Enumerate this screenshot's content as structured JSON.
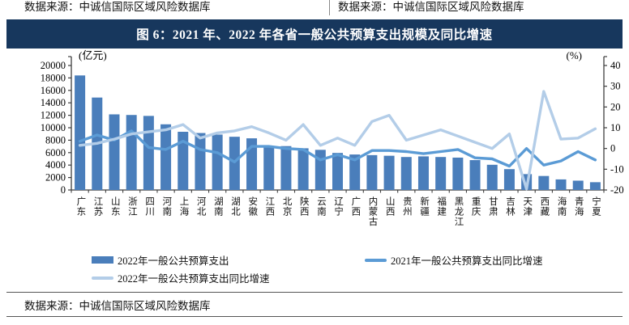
{
  "header": {
    "source_left": "数据来源：中诚信国际区域风险数据库",
    "source_right": "数据来源：中诚信国际区域风险数据库"
  },
  "banner": {
    "title": "图 6：2021 年、2022 年各省一般公共预算支出规模及同比增速",
    "bg_color": "#17375D"
  },
  "chart_data": {
    "type": "bar+line",
    "categories": [
      "广东",
      "江苏",
      "山东",
      "浙江",
      "四川",
      "河南",
      "上海",
      "河北",
      "湖南",
      "湖北",
      "安徽",
      "江西",
      "北京",
      "陕西",
      "云南",
      "辽宁",
      "广西",
      "内蒙古",
      "山西",
      "贵州",
      "新疆",
      "福建",
      "黑龙江",
      "重庆",
      "甘肃",
      "吉林",
      "天津",
      "西藏",
      "海南",
      "青海",
      "宁夏"
    ],
    "series": [
      {
        "name": "2022年一般公共预算支出",
        "type": "bar",
        "axis": "left",
        "color": "#4A7EBB",
        "values": [
          18400,
          14850,
          12150,
          12050,
          11900,
          10550,
          9350,
          9150,
          8900,
          8550,
          8300,
          7050,
          7050,
          6700,
          6450,
          5950,
          5700,
          5600,
          5500,
          5300,
          5400,
          5300,
          5200,
          4800,
          4050,
          3350,
          2550,
          2250,
          1700,
          1500,
          1250
        ]
      },
      {
        "name": "2021年一般公共预算支出同比增速",
        "type": "line",
        "axis": "right",
        "color": "#5B9BD5",
        "values": [
          3.5,
          6.5,
          4,
          8.5,
          0.5,
          -0.5,
          3.5,
          -0.5,
          -2,
          -6.5,
          1,
          1,
          0,
          -0.5,
          -5.5,
          -3,
          -5.5,
          -1,
          -1,
          -1.5,
          -2.5,
          -1.5,
          -0.5,
          -4.5,
          -5,
          -8.5,
          0,
          -8,
          -6,
          -1.5,
          -5.5
        ]
      },
      {
        "name": "2022年一般公共预算支出同比增速",
        "type": "line",
        "axis": "right",
        "color": "#B3CDE8",
        "values": [
          1.5,
          2.5,
          4.5,
          7,
          8,
          9,
          11.5,
          5,
          7.5,
          8.5,
          10.5,
          7.5,
          4,
          11.5,
          1.5,
          5,
          1.5,
          13,
          16,
          4,
          6.5,
          9,
          6,
          3,
          0,
          7,
          -19.5,
          27.5,
          4.5,
          5,
          9.5
        ]
      }
    ],
    "left_axis": {
      "unit": "(亿元)",
      "min": 0,
      "max": 20000,
      "step": 2000
    },
    "right_axis": {
      "unit": "(%)",
      "min": -20,
      "max": 40,
      "step": 10
    },
    "grid": false,
    "legend_position": "bottom",
    "axis_color": "#3f3f3f"
  },
  "footer": {
    "source": "数据来源：中诚信国际区域风险数据库"
  }
}
